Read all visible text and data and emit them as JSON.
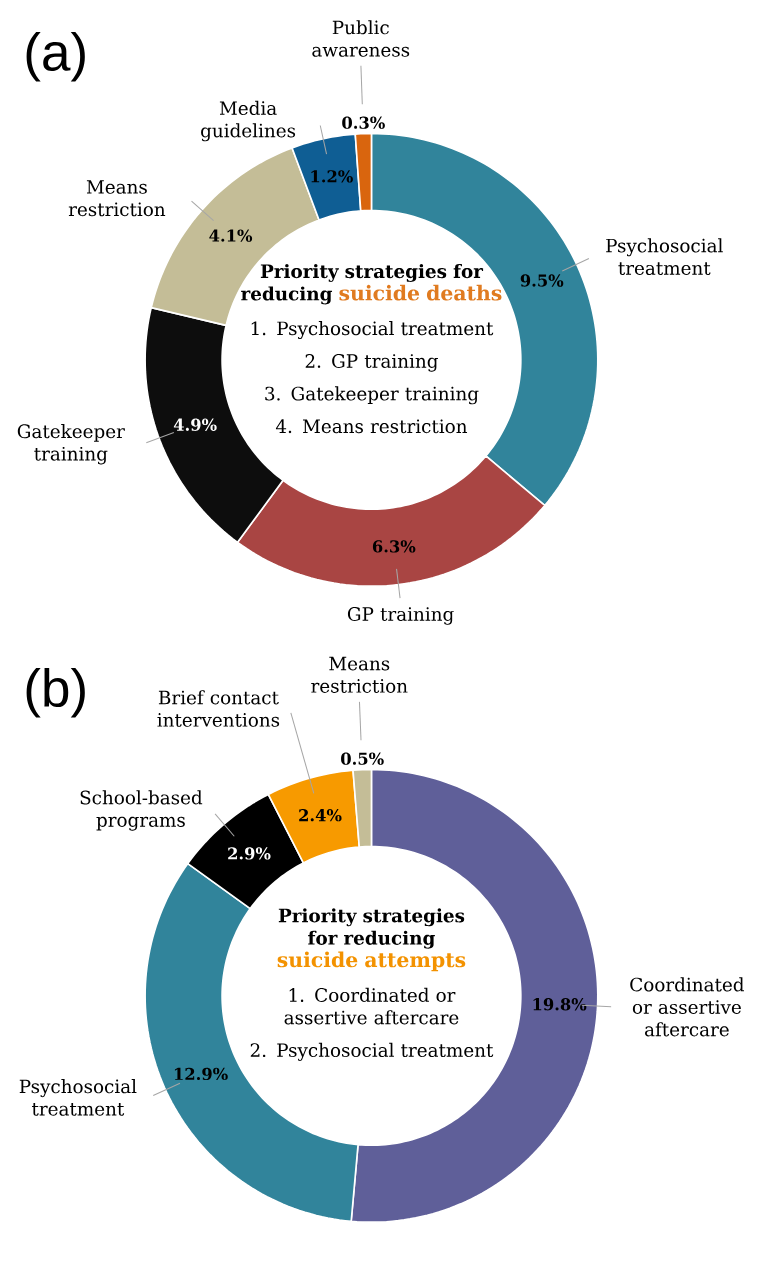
{
  "chart_data": [
    {
      "type": "donut",
      "title": "(a)",
      "categories": [
        "Psychosocial treatment",
        "GP training",
        "Gatekeeper training",
        "Means restriction",
        "Media guidelines",
        "Public awareness"
      ],
      "values": [
        9.5,
        6.3,
        4.9,
        4.1,
        1.2,
        0.3
      ],
      "value_labels": [
        "9.5%",
        "6.3%",
        "4.9%",
        "4.1%",
        "1.2%",
        "0.3%"
      ],
      "colors": [
        "#31849b",
        "#a94543",
        "#0d0d0d",
        "#c4bd97",
        "#0f5e94",
        "#d9650e"
      ],
      "annotations": [
        "Priority strategies for reducing",
        "suicide deaths",
        "1. Psychosocial treatment",
        "2. GP training",
        "3. Gatekeeper training",
        "4. Means restriction"
      ]
    },
    {
      "type": "donut",
      "title": "(b)",
      "categories": [
        "Coordinated or assertive aftercare",
        "Psychosocial treatment",
        "School-based programs",
        "Brief contact interventions",
        "Means restriction"
      ],
      "values": [
        19.8,
        12.9,
        2.9,
        2.4,
        0.5
      ],
      "value_labels": [
        "19.8%",
        "12.9%",
        "2.9%",
        "2.4%",
        "0.5%"
      ],
      "colors": [
        "#5f5f99",
        "#31849b",
        "#000000",
        "#f79a00",
        "#c4bd97"
      ],
      "annotations": [
        "Priority strategies for reducing",
        "suicide attempts",
        "1. Coordinated or assertive aftercare",
        "2. Psychosocial treatment"
      ]
    }
  ]
}
